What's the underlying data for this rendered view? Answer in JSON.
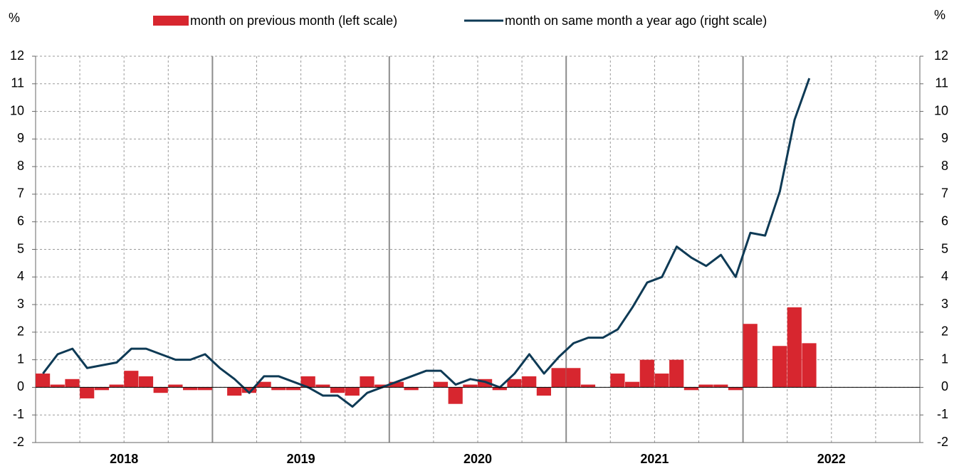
{
  "chart_data": {
    "type": "bar_line",
    "ylabel": "%",
    "y2label": "%",
    "categories": [
      "2018",
      null,
      null,
      null,
      null,
      null,
      null,
      null,
      null,
      null,
      null,
      null,
      "2019",
      null,
      null,
      null,
      null,
      null,
      null,
      null,
      null,
      null,
      null,
      null,
      "2020",
      null,
      null,
      null,
      null,
      null,
      null,
      null,
      null,
      null,
      null,
      null,
      "2021",
      null,
      null,
      null,
      null,
      null,
      null,
      null,
      null,
      null,
      null,
      null,
      "2022",
      null,
      null,
      null,
      null,
      null,
      null,
      null,
      null,
      null,
      null,
      null
    ],
    "series": [
      {
        "name": "month on previous month (left scale)",
        "type": "bar",
        "color": "#d7262f",
        "axis": "y",
        "values": [
          0.5,
          0.1,
          0.3,
          -0.4,
          -0.1,
          0.1,
          0.6,
          0.4,
          -0.2,
          0.1,
          -0.1,
          -0.1,
          0.0,
          -0.3,
          -0.2,
          0.2,
          -0.1,
          -0.1,
          0.4,
          0.1,
          -0.2,
          -0.3,
          0.4,
          0.1,
          0.2,
          -0.1,
          0.0,
          0.2,
          -0.6,
          0.1,
          0.3,
          -0.1,
          0.3,
          0.4,
          -0.3,
          0.7,
          0.7,
          0.1,
          0.0,
          0.5,
          0.2,
          1.0,
          0.5,
          1.0,
          -0.1,
          0.1,
          0.1,
          -0.1,
          2.3,
          0.0,
          1.5,
          2.9,
          1.6,
          null,
          null,
          null,
          null,
          null,
          null,
          null
        ]
      },
      {
        "name": "month on same month a year ago (right scale)",
        "type": "line",
        "color": "#0e3a55",
        "axis": "y2",
        "values": [
          0.5,
          1.2,
          1.4,
          0.7,
          0.8,
          0.9,
          1.4,
          1.4,
          1.2,
          1.0,
          1.0,
          1.2,
          0.7,
          0.3,
          -0.2,
          0.4,
          0.4,
          0.2,
          0.0,
          -0.3,
          -0.3,
          -0.7,
          -0.2,
          0.0,
          0.2,
          0.4,
          0.6,
          0.6,
          0.1,
          0.3,
          0.2,
          0.0,
          0.5,
          1.2,
          0.5,
          1.1,
          1.6,
          1.8,
          1.8,
          2.1,
          2.9,
          3.8,
          4.0,
          5.1,
          4.7,
          4.4,
          4.8,
          4.0,
          5.6,
          5.5,
          7.1,
          9.7,
          11.2,
          null,
          null,
          null,
          null,
          null,
          null,
          null
        ]
      }
    ],
    "ylim": [
      -2,
      12
    ],
    "yticks": [
      -2,
      -1,
      0,
      1,
      2,
      3,
      4,
      5,
      6,
      7,
      8,
      9,
      10,
      11,
      12
    ],
    "y2lim": [
      -2,
      12
    ],
    "y2ticks": [
      -2,
      -1,
      0,
      1,
      2,
      3,
      4,
      5,
      6,
      7,
      8,
      9,
      10,
      11,
      12
    ],
    "grid": true
  }
}
